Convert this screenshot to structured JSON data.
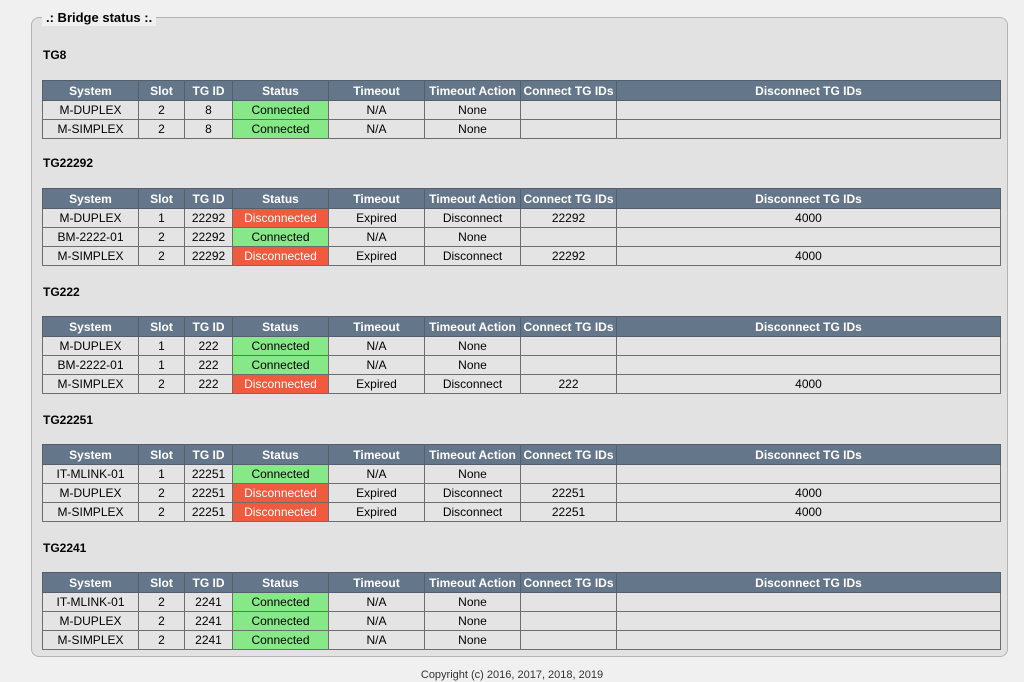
{
  "legend": ".: Bridge status :.",
  "columns": [
    "System",
    "Slot",
    "TG ID",
    "Status",
    "Timeout",
    "Timeout Action",
    "Connect TG IDs",
    "Disconnect TG IDs"
  ],
  "colors": {
    "connected": "#86e886",
    "disconnected": "#f05a3e",
    "header": "#647689"
  },
  "groups": [
    {
      "title": "TG8",
      "rows": [
        {
          "system": "M-DUPLEX",
          "slot": "2",
          "tg": "8",
          "status": "Connected",
          "timeout": "N/A",
          "action": "None",
          "connect": "",
          "disconnect": ""
        },
        {
          "system": "M-SIMPLEX",
          "slot": "2",
          "tg": "8",
          "status": "Connected",
          "timeout": "N/A",
          "action": "None",
          "connect": "",
          "disconnect": ""
        }
      ]
    },
    {
      "title": "TG22292",
      "rows": [
        {
          "system": "M-DUPLEX",
          "slot": "1",
          "tg": "22292",
          "status": "Disconnected",
          "timeout": "Expired",
          "action": "Disconnect",
          "connect": "22292",
          "disconnect": "4000"
        },
        {
          "system": "BM-2222-01",
          "slot": "2",
          "tg": "22292",
          "status": "Connected",
          "timeout": "N/A",
          "action": "None",
          "connect": "",
          "disconnect": ""
        },
        {
          "system": "M-SIMPLEX",
          "slot": "2",
          "tg": "22292",
          "status": "Disconnected",
          "timeout": "Expired",
          "action": "Disconnect",
          "connect": "22292",
          "disconnect": "4000"
        }
      ]
    },
    {
      "title": "TG222",
      "rows": [
        {
          "system": "M-DUPLEX",
          "slot": "1",
          "tg": "222",
          "status": "Connected",
          "timeout": "N/A",
          "action": "None",
          "connect": "",
          "disconnect": ""
        },
        {
          "system": "BM-2222-01",
          "slot": "1",
          "tg": "222",
          "status": "Connected",
          "timeout": "N/A",
          "action": "None",
          "connect": "",
          "disconnect": ""
        },
        {
          "system": "M-SIMPLEX",
          "slot": "2",
          "tg": "222",
          "status": "Disconnected",
          "timeout": "Expired",
          "action": "Disconnect",
          "connect": "222",
          "disconnect": "4000"
        }
      ]
    },
    {
      "title": "TG22251",
      "rows": [
        {
          "system": "IT-MLINK-01",
          "slot": "1",
          "tg": "22251",
          "status": "Connected",
          "timeout": "N/A",
          "action": "None",
          "connect": "",
          "disconnect": ""
        },
        {
          "system": "M-DUPLEX",
          "slot": "2",
          "tg": "22251",
          "status": "Disconnected",
          "timeout": "Expired",
          "action": "Disconnect",
          "connect": "22251",
          "disconnect": "4000"
        },
        {
          "system": "M-SIMPLEX",
          "slot": "2",
          "tg": "22251",
          "status": "Disconnected",
          "timeout": "Expired",
          "action": "Disconnect",
          "connect": "22251",
          "disconnect": "4000"
        }
      ]
    },
    {
      "title": "TG2241",
      "rows": [
        {
          "system": "IT-MLINK-01",
          "slot": "2",
          "tg": "2241",
          "status": "Connected",
          "timeout": "N/A",
          "action": "None",
          "connect": "",
          "disconnect": ""
        },
        {
          "system": "M-DUPLEX",
          "slot": "2",
          "tg": "2241",
          "status": "Connected",
          "timeout": "N/A",
          "action": "None",
          "connect": "",
          "disconnect": ""
        },
        {
          "system": "M-SIMPLEX",
          "slot": "2",
          "tg": "2241",
          "status": "Connected",
          "timeout": "N/A",
          "action": "None",
          "connect": "",
          "disconnect": ""
        }
      ]
    }
  ],
  "footer": "Copyright (c) 2016, 2017, 2018, 2019"
}
